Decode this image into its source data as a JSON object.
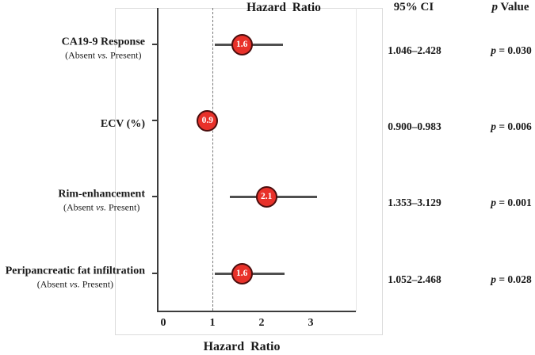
{
  "header": {
    "plot_title": "Hazard  Ratio",
    "ci_label": "95% CI",
    "p_label_sym": "p",
    "p_label_rest": " Value"
  },
  "axis": {
    "ticks": [
      0,
      1,
      2,
      3
    ],
    "tick_labels": [
      "0",
      "1",
      "2",
      "3"
    ],
    "reference_line": 1,
    "xlabel": "Hazard  Ratio"
  },
  "rows": [
    {
      "label": "CA19-9 Response",
      "sublabel_pre": "(Absent ",
      "sublabel_vs": "vs.",
      "sublabel_post": " Present)",
      "hr": 1.6,
      "hr_label": "1.6",
      "ci_low": 1.046,
      "ci_high": 2.428,
      "ci_text": "1.046–2.428",
      "p_sym": "p",
      "p_rest": " = 0.030"
    },
    {
      "label": "ECV (%)",
      "sublabel_pre": "",
      "sublabel_vs": "",
      "sublabel_post": "",
      "hr": 0.9,
      "hr_label": "0.9",
      "ci_low": 0.9,
      "ci_high": 0.983,
      "ci_text": "0.900–0.983",
      "p_sym": "p",
      "p_rest": " = 0.006"
    },
    {
      "label": "Rim-enhancement",
      "sublabel_pre": "(Absent ",
      "sublabel_vs": "vs.",
      "sublabel_post": " Present)",
      "hr": 2.1,
      "hr_label": "2.1",
      "ci_low": 1.353,
      "ci_high": 3.129,
      "ci_text": "1.353–3.129",
      "p_sym": "p",
      "p_rest": " = 0.001"
    },
    {
      "label": "Peripancreatic fat infiltration",
      "sublabel_pre": "(Absent ",
      "sublabel_vs": "vs.",
      "sublabel_post": " Present)",
      "hr": 1.6,
      "hr_label": "1.6",
      "ci_low": 1.052,
      "ci_high": 2.468,
      "ci_text": "1.052–2.468",
      "p_sym": "p",
      "p_rest": " = 0.028"
    }
  ],
  "colors": {
    "marker_fill": "#e8312a",
    "marker_border": "#4a0d0d",
    "ci_line": "#4f4f4f",
    "axis": "#3c3c3c",
    "frame": "#dcdcdc",
    "text": "#1a1a1a"
  },
  "chart_data": {
    "type": "scatter",
    "subtype": "forest-plot",
    "title": "Hazard  Ratio",
    "xlabel": "Hazard  Ratio",
    "xticks": [
      0,
      1,
      2,
      3
    ],
    "xlim": [
      0,
      3.9
    ],
    "reference_line_x": 1,
    "grid": false,
    "legend": false,
    "columns": [
      "variable",
      "hazard_ratio",
      "95% CI",
      "p value"
    ],
    "rows": [
      {
        "label": "CA19-9 Response (Absent vs. Present)",
        "hazard_ratio": 1.6,
        "ci": [
          1.046,
          2.428
        ],
        "p": 0.03
      },
      {
        "label": "ECV (%)",
        "hazard_ratio": 0.9,
        "ci": [
          0.9,
          0.983
        ],
        "p": 0.006
      },
      {
        "label": "Rim-enhancement (Absent vs. Present)",
        "hazard_ratio": 2.1,
        "ci": [
          1.353,
          3.129
        ],
        "p": 0.001
      },
      {
        "label": "Peripancreatic fat infiltration (Absent vs. Present)",
        "hazard_ratio": 1.6,
        "ci": [
          1.052,
          2.468
        ],
        "p": 0.028
      }
    ]
  }
}
